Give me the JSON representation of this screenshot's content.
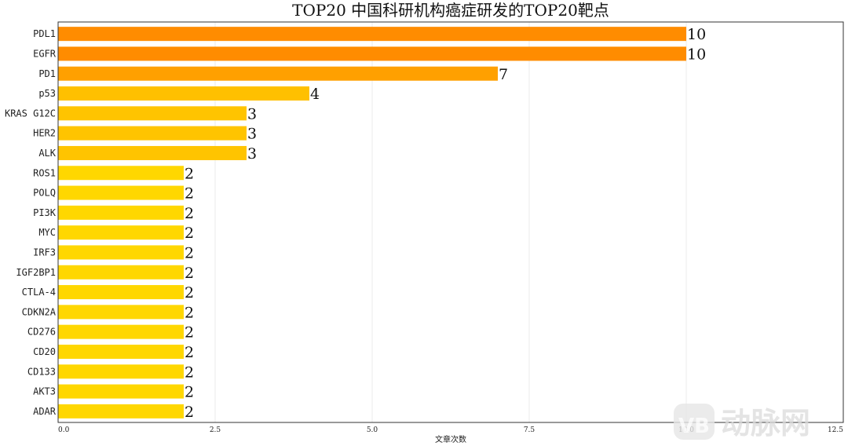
{
  "chart_data": {
    "type": "bar",
    "orientation": "horizontal",
    "title": "TOP20 中国科研机构癌症研发的TOP20靶点",
    "xlabel": "文章次数",
    "ylabel": "",
    "xlim": [
      0,
      12.5
    ],
    "xticks": [
      "0.0",
      "2.5",
      "5.0",
      "7.5",
      "10.0",
      "12.5"
    ],
    "grid": "vertical",
    "data_labels": true,
    "categories": [
      "PDL1",
      "EGFR",
      "PD1",
      "p53",
      "KRAS G12C",
      "HER2",
      "ALK",
      "ROS1",
      "POLQ",
      "PI3K",
      "MYC",
      "IRF3",
      "IGF2BP1",
      "CTLA-4",
      "CDKN2A",
      "CD276",
      "CD20",
      "CD133",
      "AKT3",
      "ADAR"
    ],
    "values": [
      10,
      10,
      7,
      4,
      3,
      3,
      3,
      2,
      2,
      2,
      2,
      2,
      2,
      2,
      2,
      2,
      2,
      2,
      2,
      2
    ],
    "bar_colors": [
      "#FF8C00",
      "#FF8C00",
      "#FFA000",
      "#FFC000",
      "#FFC400",
      "#FFC400",
      "#FFC400",
      "#FFD700",
      "#FFD700",
      "#FFD700",
      "#FFD700",
      "#FFD700",
      "#FFD700",
      "#FFD700",
      "#FFD700",
      "#FFD700",
      "#FFD700",
      "#FFD700",
      "#FFD700",
      "#FFD700"
    ]
  },
  "watermark": {
    "logo_text": "VB",
    "text": "动脉网"
  }
}
